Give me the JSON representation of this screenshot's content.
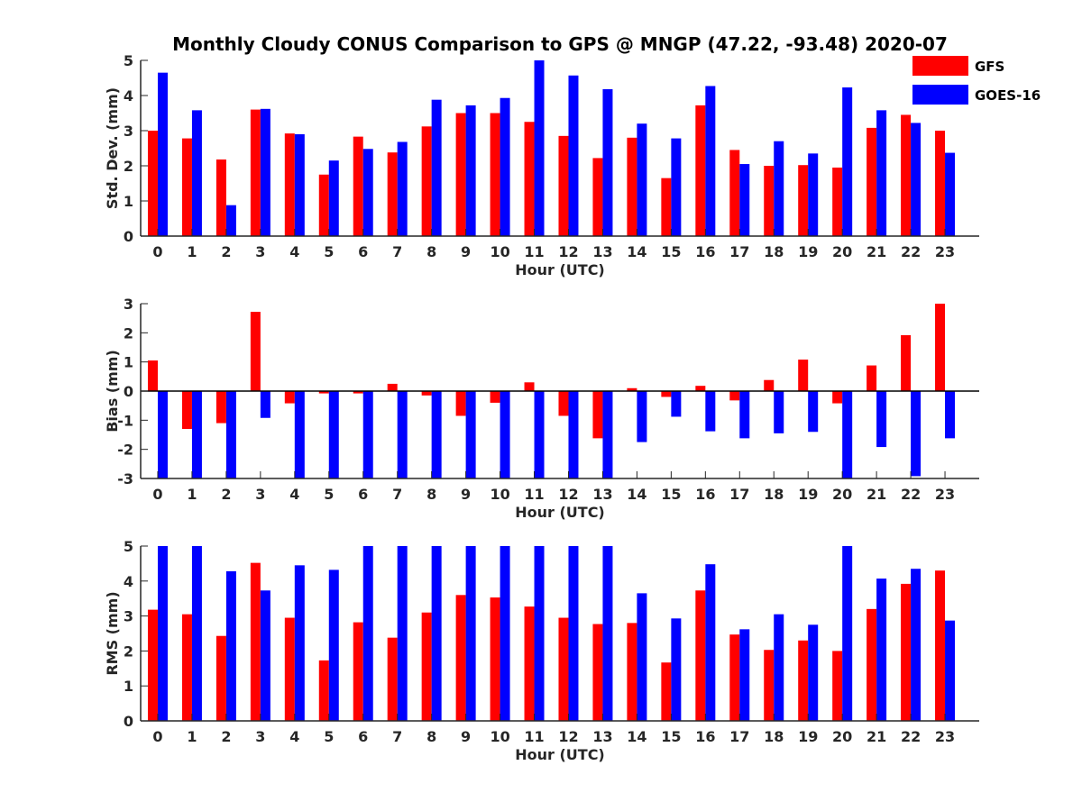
{
  "title": "Monthly Cloudy CONUS Comparison to GPS @ MNGP (47.22, -93.48) 2020-07",
  "legend": {
    "placement": "top-right",
    "items": [
      {
        "label": "GFS",
        "color": "#ff0000"
      },
      {
        "label": "GOES-16",
        "color": "#0000ff"
      }
    ]
  },
  "chart_data": [
    {
      "type": "bar",
      "title": "Monthly Cloudy CONUS Comparison to GPS @ MNGP (47.22, -93.48) 2020-07",
      "xlabel": "Hour (UTC)",
      "ylabel": "Std. Dev. (mm)",
      "ylim": [
        0,
        5
      ],
      "yticks": [
        0,
        1,
        2,
        3,
        4,
        5
      ],
      "categories": [
        "0",
        "1",
        "2",
        "3",
        "4",
        "5",
        "6",
        "7",
        "8",
        "9",
        "10",
        "11",
        "12",
        "13",
        "14",
        "15",
        "16",
        "17",
        "18",
        "19",
        "20",
        "21",
        "22",
        "23"
      ],
      "series": [
        {
          "name": "GFS",
          "color": "#ff0000",
          "values": [
            3.0,
            2.78,
            2.18,
            3.6,
            2.92,
            1.75,
            2.83,
            2.38,
            3.12,
            3.5,
            3.5,
            3.25,
            2.85,
            2.22,
            2.8,
            1.65,
            3.72,
            2.45,
            2.0,
            2.02,
            1.95,
            3.08,
            3.45,
            3.0
          ]
        },
        {
          "name": "GOES-16",
          "color": "#0000ff",
          "values": [
            4.65,
            3.58,
            0.88,
            3.62,
            2.9,
            2.15,
            2.48,
            2.68,
            3.88,
            3.72,
            3.93,
            5.0,
            4.57,
            4.18,
            3.2,
            2.78,
            4.27,
            2.05,
            2.7,
            2.35,
            4.23,
            3.58,
            3.22,
            2.37
          ]
        }
      ],
      "grid": false
    },
    {
      "type": "bar",
      "xlabel": "Hour (UTC)",
      "ylabel": "Bias (mm)",
      "ylim": [
        -3,
        3
      ],
      "yticks": [
        -3,
        -2,
        -1,
        0,
        1,
        2,
        3
      ],
      "categories": [
        "0",
        "1",
        "2",
        "3",
        "4",
        "5",
        "6",
        "7",
        "8",
        "9",
        "10",
        "11",
        "12",
        "13",
        "14",
        "15",
        "16",
        "17",
        "18",
        "19",
        "20",
        "21",
        "22",
        "23"
      ],
      "series": [
        {
          "name": "GFS",
          "color": "#ff0000",
          "values": [
            1.05,
            -1.3,
            -1.1,
            2.72,
            -0.42,
            -0.08,
            -0.08,
            0.25,
            -0.15,
            -0.85,
            -0.4,
            0.3,
            -0.85,
            -1.62,
            0.1,
            -0.2,
            0.18,
            -0.32,
            0.38,
            1.08,
            -0.42,
            0.88,
            1.92,
            3.0
          ]
        },
        {
          "name": "GOES-16",
          "color": "#0000ff",
          "values": [
            -3.0,
            -3.0,
            -3.0,
            -0.92,
            -3.0,
            -3.0,
            -3.0,
            -3.0,
            -3.0,
            -3.0,
            -3.0,
            -3.0,
            -3.0,
            -3.0,
            -1.75,
            -0.88,
            -1.38,
            -1.62,
            -1.45,
            -1.4,
            -3.0,
            -1.92,
            -2.92,
            -1.62
          ]
        }
      ],
      "grid": false
    },
    {
      "type": "bar",
      "xlabel": "Hour (UTC)",
      "ylabel": "RMS (mm)",
      "ylim": [
        0,
        5
      ],
      "yticks": [
        0,
        1,
        2,
        3,
        4,
        5
      ],
      "categories": [
        "0",
        "1",
        "2",
        "3",
        "4",
        "5",
        "6",
        "7",
        "8",
        "9",
        "10",
        "11",
        "12",
        "13",
        "14",
        "15",
        "16",
        "17",
        "18",
        "19",
        "20",
        "21",
        "22",
        "23"
      ],
      "series": [
        {
          "name": "GFS",
          "color": "#ff0000",
          "values": [
            3.18,
            3.05,
            2.43,
            4.52,
            2.95,
            1.73,
            2.82,
            2.38,
            3.1,
            3.6,
            3.53,
            3.27,
            2.95,
            2.77,
            2.8,
            1.67,
            3.73,
            2.47,
            2.03,
            2.3,
            2.0,
            3.2,
            3.92,
            4.3
          ]
        },
        {
          "name": "GOES-16",
          "color": "#0000ff",
          "values": [
            5.0,
            5.0,
            4.28,
            3.73,
            4.45,
            4.32,
            5.0,
            5.0,
            5.0,
            5.0,
            5.0,
            5.0,
            5.0,
            5.0,
            3.65,
            2.93,
            4.48,
            2.62,
            3.05,
            2.75,
            5.0,
            4.07,
            4.35,
            2.87
          ]
        }
      ],
      "grid": false
    }
  ]
}
